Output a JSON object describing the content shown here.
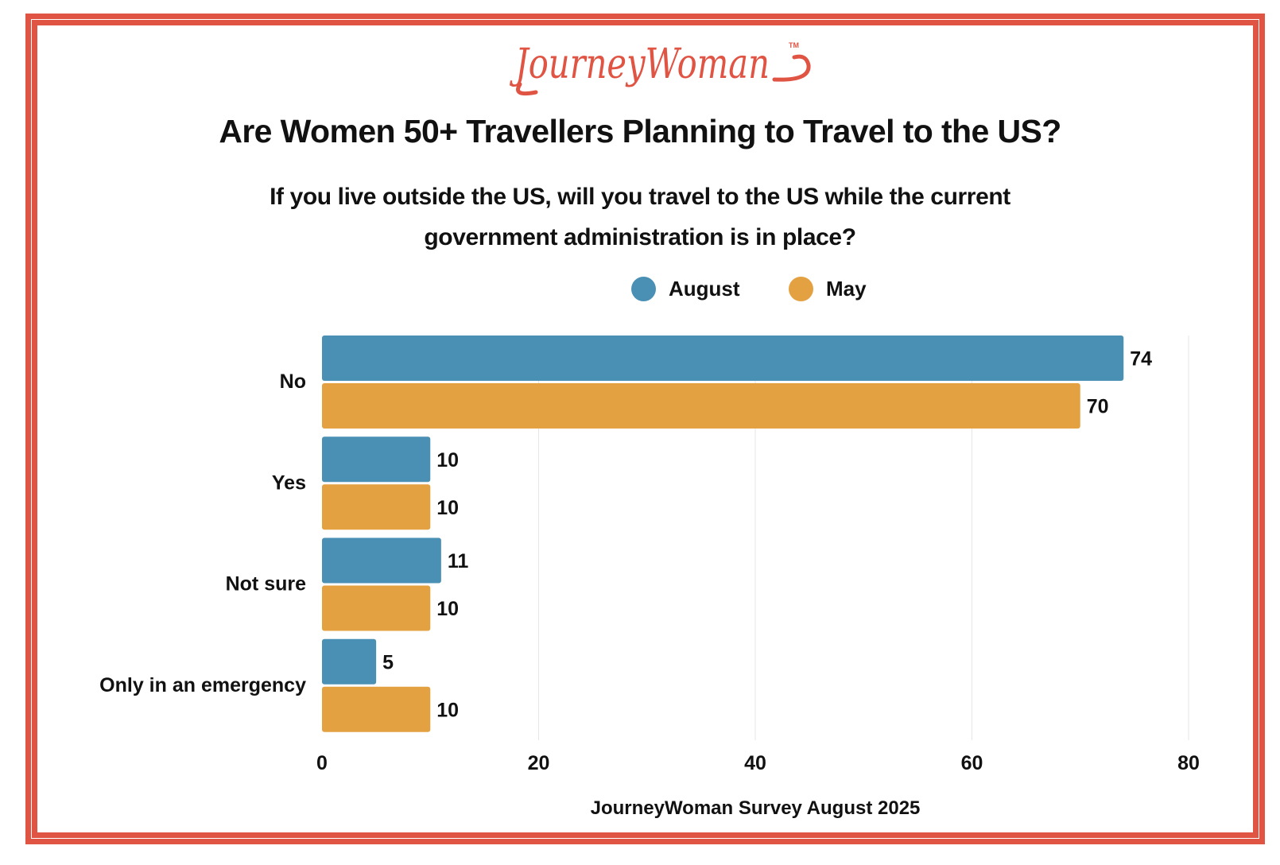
{
  "logo": {
    "text": "JourneyWoman",
    "tm": "TM",
    "color": "#e05444"
  },
  "title": "Are Women 50+ Travellers Planning to Travel to the US?",
  "subtitle_lines": [
    "If you live outside the US, will you travel to the US while the current",
    "government administration is in place?"
  ],
  "chart_data": {
    "type": "bar",
    "orientation": "horizontal",
    "title": "Are Women 50+ Travellers Planning to Travel to the US?",
    "subtitle": "If you live outside the US, will you travel to the US while the current government administration is in place?",
    "categories": [
      "No",
      "Yes",
      "Not sure",
      "Only in an emergency"
    ],
    "series": [
      {
        "name": "August",
        "color": "#4a90b4",
        "values": [
          74,
          10,
          11,
          5
        ]
      },
      {
        "name": "May",
        "color": "#e3a142",
        "values": [
          70,
          10,
          10,
          10
        ]
      }
    ],
    "xlim": [
      0,
      80
    ],
    "xticks": [
      0,
      20,
      40,
      60,
      80
    ],
    "xlabel": "JourneyWoman Survey August 2025",
    "ylabel": "",
    "grid": "vertical",
    "legend": "top",
    "data_labels": true
  },
  "colors": {
    "border": "#e05444",
    "grid": "#e6e6e6"
  }
}
